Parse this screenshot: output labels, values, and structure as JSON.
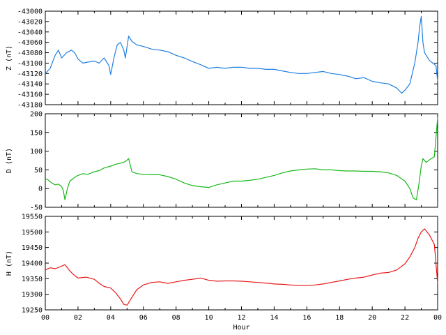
{
  "chart_data": {
    "type": "line",
    "xlabel": "Hour",
    "x_ticks": [
      "00",
      "02",
      "04",
      "06",
      "08",
      "10",
      "12",
      "14",
      "16",
      "18",
      "20",
      "22",
      "00"
    ],
    "x_range": [
      0,
      24
    ],
    "grid": false,
    "panels": [
      {
        "ylabel": "Z (nT)",
        "ylim": [
          -43180,
          -43000
        ],
        "y_ticks": [
          -43000,
          -43020,
          -43040,
          -43060,
          -43080,
          -43100,
          -43120,
          -43140,
          -43160,
          -43180
        ],
        "series": [
          {
            "color": "#1f7fe0",
            "points": [
              [
                0,
                -43120
              ],
              [
                0.3,
                -43110
              ],
              [
                0.6,
                -43085
              ],
              [
                0.8,
                -43075
              ],
              [
                1.0,
                -43090
              ],
              [
                1.3,
                -43080
              ],
              [
                1.6,
                -43075
              ],
              [
                1.8,
                -43080
              ],
              [
                2.0,
                -43092
              ],
              [
                2.3,
                -43100
              ],
              [
                2.6,
                -43098
              ],
              [
                3.0,
                -43096
              ],
              [
                3.3,
                -43100
              ],
              [
                3.6,
                -43090
              ],
              [
                3.9,
                -43105
              ],
              [
                4.0,
                -43122
              ],
              [
                4.2,
                -43090
              ],
              [
                4.4,
                -43065
              ],
              [
                4.6,
                -43060
              ],
              [
                4.8,
                -43075
              ],
              [
                4.9,
                -43090
              ],
              [
                5.1,
                -43048
              ],
              [
                5.3,
                -43058
              ],
              [
                5.6,
                -43065
              ],
              [
                6.0,
                -43068
              ],
              [
                6.5,
                -43073
              ],
              [
                7.0,
                -43075
              ],
              [
                7.5,
                -43078
              ],
              [
                8.0,
                -43085
              ],
              [
                8.5,
                -43090
              ],
              [
                9.0,
                -43097
              ],
              [
                9.5,
                -43103
              ],
              [
                10.0,
                -43110
              ],
              [
                10.5,
                -43108
              ],
              [
                11.0,
                -43110
              ],
              [
                11.5,
                -43108
              ],
              [
                12.0,
                -43108
              ],
              [
                12.5,
                -43110
              ],
              [
                13.0,
                -43110
              ],
              [
                13.5,
                -43112
              ],
              [
                14.0,
                -43112
              ],
              [
                14.5,
                -43115
              ],
              [
                15.0,
                -43118
              ],
              [
                15.5,
                -43120
              ],
              [
                16.0,
                -43120
              ],
              [
                16.5,
                -43118
              ],
              [
                17.0,
                -43116
              ],
              [
                17.5,
                -43120
              ],
              [
                18.0,
                -43122
              ],
              [
                18.5,
                -43125
              ],
              [
                19.0,
                -43130
              ],
              [
                19.5,
                -43128
              ],
              [
                20.0,
                -43135
              ],
              [
                20.5,
                -43138
              ],
              [
                21.0,
                -43140
              ],
              [
                21.5,
                -43148
              ],
              [
                21.8,
                -43158
              ],
              [
                22.0,
                -43152
              ],
              [
                22.3,
                -43140
              ],
              [
                22.6,
                -43100
              ],
              [
                22.8,
                -43060
              ],
              [
                22.9,
                -43030
              ],
              [
                23.0,
                -43010
              ],
              [
                23.1,
                -43060
              ],
              [
                23.2,
                -43080
              ],
              [
                23.5,
                -43095
              ],
              [
                23.7,
                -43100
              ],
              [
                23.9,
                -43105
              ],
              [
                24.0,
                -43135
              ]
            ]
          }
        ]
      },
      {
        "ylabel": "D (nT)",
        "ylim": [
          -50,
          200
        ],
        "y_ticks": [
          200,
          150,
          100,
          50,
          0,
          -50
        ],
        "series": [
          {
            "color": "#18b818",
            "points": [
              [
                0,
                27
              ],
              [
                0.2,
                22
              ],
              [
                0.4,
                15
              ],
              [
                0.6,
                10
              ],
              [
                0.8,
                12
              ],
              [
                1.0,
                5
              ],
              [
                1.1,
                -5
              ],
              [
                1.2,
                -30
              ],
              [
                1.35,
                0
              ],
              [
                1.5,
                20
              ],
              [
                1.8,
                30
              ],
              [
                2.0,
                35
              ],
              [
                2.3,
                40
              ],
              [
                2.6,
                38
              ],
              [
                3.0,
                45
              ],
              [
                3.3,
                48
              ],
              [
                3.6,
                55
              ],
              [
                4.0,
                60
              ],
              [
                4.3,
                65
              ],
              [
                4.6,
                68
              ],
              [
                4.9,
                72
              ],
              [
                5.1,
                80
              ],
              [
                5.3,
                45
              ],
              [
                5.6,
                40
              ],
              [
                6.0,
                38
              ],
              [
                6.5,
                37
              ],
              [
                7.0,
                37
              ],
              [
                7.5,
                32
              ],
              [
                8.0,
                25
              ],
              [
                8.5,
                15
              ],
              [
                9.0,
                8
              ],
              [
                9.5,
                5
              ],
              [
                10.0,
                3
              ],
              [
                10.5,
                10
              ],
              [
                11.0,
                15
              ],
              [
                11.5,
                20
              ],
              [
                12.0,
                20
              ],
              [
                12.5,
                22
              ],
              [
                13.0,
                25
              ],
              [
                13.5,
                30
              ],
              [
                14.0,
                35
              ],
              [
                14.5,
                42
              ],
              [
                15.0,
                47
              ],
              [
                15.5,
                50
              ],
              [
                16.0,
                52
              ],
              [
                16.5,
                53
              ],
              [
                17.0,
                50
              ],
              [
                17.5,
                50
              ],
              [
                18.0,
                48
              ],
              [
                18.5,
                47
              ],
              [
                19.0,
                47
              ],
              [
                19.5,
                46
              ],
              [
                20.0,
                46
              ],
              [
                20.5,
                45
              ],
              [
                21.0,
                42
              ],
              [
                21.5,
                35
              ],
              [
                22.0,
                20
              ],
              [
                22.3,
                0
              ],
              [
                22.5,
                -25
              ],
              [
                22.7,
                -30
              ],
              [
                22.85,
                10
              ],
              [
                23.0,
                60
              ],
              [
                23.1,
                80
              ],
              [
                23.3,
                70
              ],
              [
                23.6,
                80
              ],
              [
                23.8,
                85
              ],
              [
                24.0,
                190
              ]
            ]
          }
        ]
      },
      {
        "ylabel": "H (nT)",
        "ylim": [
          19250,
          19550
        ],
        "y_ticks": [
          19550,
          19500,
          19450,
          19400,
          19350,
          19300,
          19250
        ],
        "series": [
          {
            "color": "#e81818",
            "points": [
              [
                0,
                19378
              ],
              [
                0.3,
                19385
              ],
              [
                0.6,
                19382
              ],
              [
                0.9,
                19388
              ],
              [
                1.2,
                19395
              ],
              [
                1.5,
                19375
              ],
              [
                1.8,
                19360
              ],
              [
                2.0,
                19352
              ],
              [
                2.5,
                19355
              ],
              [
                3.0,
                19348
              ],
              [
                3.3,
                19335
              ],
              [
                3.6,
                19325
              ],
              [
                4.0,
                19320
              ],
              [
                4.3,
                19305
              ],
              [
                4.6,
                19285
              ],
              [
                4.8,
                19268
              ],
              [
                5.0,
                19265
              ],
              [
                5.3,
                19290
              ],
              [
                5.6,
                19315
              ],
              [
                6.0,
                19330
              ],
              [
                6.5,
                19338
              ],
              [
                7.0,
                19340
              ],
              [
                7.5,
                19335
              ],
              [
                8.0,
                19340
              ],
              [
                8.5,
                19345
              ],
              [
                9.0,
                19348
              ],
              [
                9.5,
                19352
              ],
              [
                10.0,
                19345
              ],
              [
                10.5,
                19342
              ],
              [
                11.0,
                19343
              ],
              [
                11.5,
                19343
              ],
              [
                12.0,
                19342
              ],
              [
                12.5,
                19340
              ],
              [
                13.0,
                19338
              ],
              [
                13.5,
                19336
              ],
              [
                14.0,
                19333
              ],
              [
                14.5,
                19332
              ],
              [
                15.0,
                19330
              ],
              [
                15.5,
                19328
              ],
              [
                16.0,
                19328
              ],
              [
                16.5,
                19330
              ],
              [
                17.0,
                19333
              ],
              [
                17.5,
                19338
              ],
              [
                18.0,
                19343
              ],
              [
                18.5,
                19348
              ],
              [
                19.0,
                19352
              ],
              [
                19.5,
                19355
              ],
              [
                20.0,
                19362
              ],
              [
                20.5,
                19368
              ],
              [
                21.0,
                19370
              ],
              [
                21.5,
                19378
              ],
              [
                22.0,
                19398
              ],
              [
                22.3,
                19420
              ],
              [
                22.6,
                19450
              ],
              [
                22.8,
                19480
              ],
              [
                23.0,
                19500
              ],
              [
                23.2,
                19510
              ],
              [
                23.5,
                19490
              ],
              [
                23.8,
                19460
              ],
              [
                24.0,
                19335
              ]
            ]
          }
        ]
      }
    ]
  }
}
